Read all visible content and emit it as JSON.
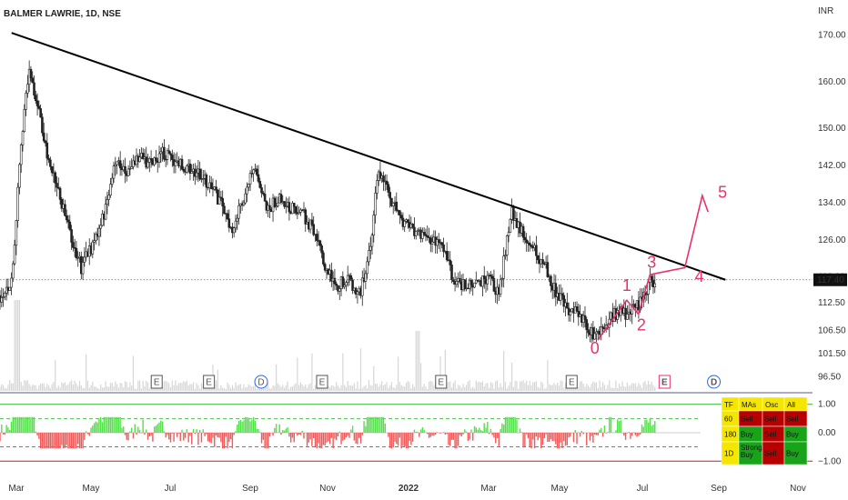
{
  "header": {
    "title": "BALMER LAWRIE, 1D, NSE",
    "currency": "INR"
  },
  "colors": {
    "up": "#22ab94",
    "down": "#f7525f",
    "candle": "#222222",
    "trendline": "#000000",
    "wave": "#e8336b",
    "osc_up": "#54e04a",
    "osc_down": "#f05a5a",
    "osc_upper_line": "#2db52d",
    "osc_lower_line": "#d01818"
  },
  "chart_data": {
    "type": "candlestick",
    "ylim": [
      93.5,
      176
    ],
    "price_ticks": [
      "170.00",
      "160.00",
      "150.00",
      "142.00",
      "134.00",
      "126.00",
      "118.00",
      "112.50",
      "106.50",
      "101.50",
      "96.50"
    ],
    "x_labels": [
      "Mar",
      "May",
      "Jul",
      "Sep",
      "Nov",
      "2022",
      "Mar",
      "May",
      "Jul",
      "Sep",
      "Nov"
    ],
    "last_price": "117.40",
    "close_path": [
      [
        0,
        114
      ],
      [
        2,
        117
      ],
      [
        4,
        152
      ],
      [
        5,
        162
      ],
      [
        6,
        158
      ],
      [
        8,
        145
      ],
      [
        10,
        136
      ],
      [
        12,
        128
      ],
      [
        14,
        120
      ],
      [
        16,
        125
      ],
      [
        18,
        132
      ],
      [
        20,
        143
      ],
      [
        22,
        140
      ],
      [
        24,
        144
      ],
      [
        26,
        142
      ],
      [
        28,
        145
      ],
      [
        30,
        143
      ],
      [
        33,
        141
      ],
      [
        36,
        138
      ],
      [
        38,
        134
      ],
      [
        40,
        128
      ],
      [
        43,
        139
      ],
      [
        44,
        140
      ],
      [
        46,
        132
      ],
      [
        48,
        135
      ],
      [
        50,
        133
      ],
      [
        52,
        132
      ],
      [
        54,
        128
      ],
      [
        56,
        120
      ],
      [
        58,
        116
      ],
      [
        60,
        118
      ],
      [
        62,
        114
      ],
      [
        64,
        125
      ],
      [
        65,
        140
      ],
      [
        67,
        136
      ],
      [
        69,
        130
      ],
      [
        71,
        128
      ],
      [
        73,
        127
      ],
      [
        76,
        125
      ],
      [
        78,
        118
      ],
      [
        80,
        116
      ],
      [
        82,
        116
      ],
      [
        84,
        118
      ],
      [
        86,
        114
      ],
      [
        88,
        132
      ],
      [
        90,
        128
      ],
      [
        92,
        124
      ],
      [
        94,
        120
      ],
      [
        96,
        114
      ],
      [
        98,
        111
      ],
      [
        100,
        110
      ],
      [
        102,
        106
      ],
      [
        103,
        105
      ],
      [
        105,
        109
      ],
      [
        107,
        111
      ],
      [
        108,
        110
      ],
      [
        110,
        112
      ],
      [
        111,
        114
      ],
      [
        112,
        117
      ],
      [
        113,
        115
      ]
    ],
    "trendline": {
      "start": [
        2,
        170.5
      ],
      "end": [
        125,
        117.4
      ]
    },
    "wave_path": [
      [
        103,
        104.5
      ],
      [
        108,
        113
      ],
      [
        110,
        110
      ],
      [
        112,
        118.5
      ],
      [
        118,
        120
      ],
      [
        121,
        135.5
      ],
      [
        122,
        132
      ]
    ],
    "wave_labels": [
      {
        "text": "0",
        "x": 102.5,
        "y": 101.5
      },
      {
        "text": "1",
        "x": 108,
        "y": 115
      },
      {
        "text": "2",
        "x": 110.5,
        "y": 106.5
      },
      {
        "text": "3",
        "x": 112.3,
        "y": 120
      },
      {
        "text": "4",
        "x": 120.5,
        "y": 117
      },
      {
        "text": "5",
        "x": 124.5,
        "y": 135
      }
    ],
    "events": [
      {
        "text": "E",
        "x": 27,
        "kind": "earnings"
      },
      {
        "text": "E",
        "x": 36,
        "kind": "earnings"
      },
      {
        "text": "D",
        "x": 45,
        "kind": "dividend"
      },
      {
        "text": "E",
        "x": 55.5,
        "kind": "earnings"
      },
      {
        "text": "E",
        "x": 76,
        "kind": "earnings"
      },
      {
        "text": "E",
        "x": 98.5,
        "kind": "earnings"
      },
      {
        "text": "E",
        "x": 114.5,
        "kind": "earnings-upcoming"
      },
      {
        "text": "D",
        "x": 123,
        "kind": "dividend-upcoming"
      }
    ],
    "x_range": [
      0,
      140
    ],
    "oscillator": {
      "ylim": [
        -1.15,
        1.15
      ],
      "ticks": [
        "1.00",
        "0.00",
        "−1.00"
      ]
    }
  },
  "ratings_table": {
    "headers": [
      "TF",
      "MAs",
      "Osc",
      "All"
    ],
    "rows": [
      {
        "tf": "60",
        "mas": "Sell",
        "osc": "Sell",
        "all": "Sell"
      },
      {
        "tf": "180",
        "mas": "Buy",
        "osc": "Sell",
        "all": "Buy"
      },
      {
        "tf": "1D",
        "mas": "Strong Buy",
        "osc": "Sell",
        "all": "Buy"
      }
    ]
  }
}
